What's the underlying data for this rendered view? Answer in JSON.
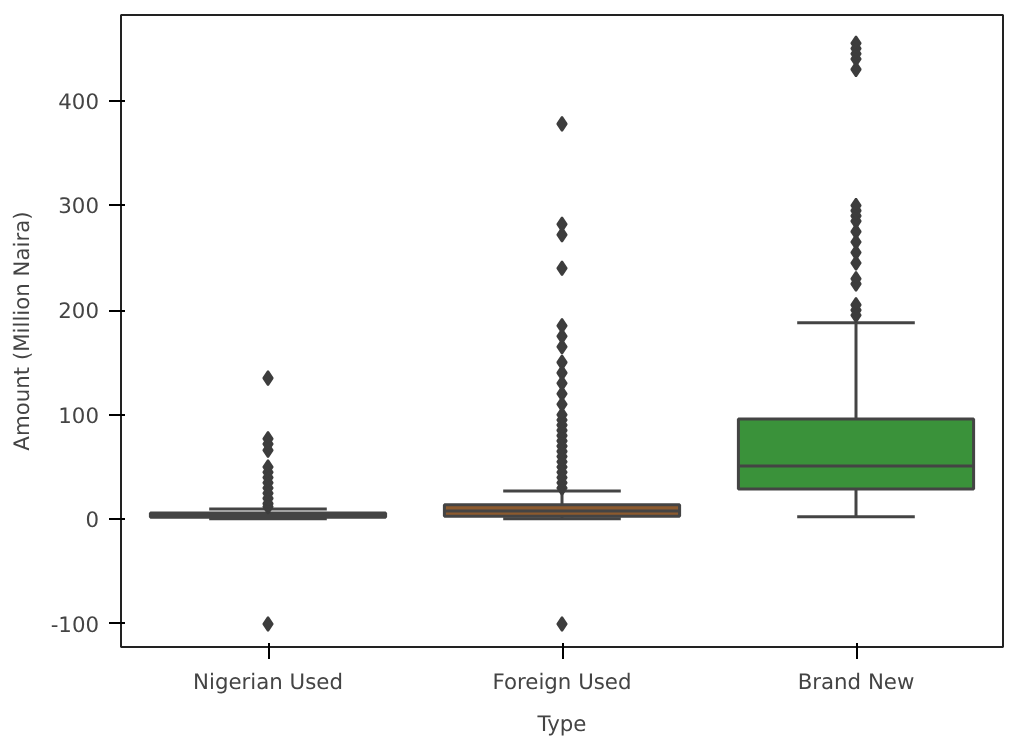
{
  "chart_data": {
    "type": "box",
    "xlabel": "Type",
    "ylabel": "Amount (Million Naira)",
    "categories": [
      "Nigerian Used",
      "Foreign Used",
      "Brand New"
    ],
    "colors": [
      "#3274a1",
      "#8c5a2e",
      "#3a923a"
    ],
    "boxes": [
      {
        "low": 0.5,
        "q1": 2,
        "median": 4,
        "q3": 6,
        "high": 10,
        "outliers": [
          -100,
          12,
          15,
          20,
          25,
          30,
          35,
          40,
          45,
          50,
          66,
          72,
          77,
          135
        ]
      },
      {
        "low": 0.5,
        "q1": 3,
        "median": 8,
        "q3": 14,
        "high": 27,
        "outliers": [
          -100,
          30,
          35,
          40,
          45,
          50,
          55,
          60,
          65,
          70,
          75,
          80,
          85,
          90,
          95,
          100,
          110,
          120,
          130,
          140,
          150,
          165,
          175,
          185,
          240,
          272,
          282,
          378
        ]
      },
      {
        "low": 2.5,
        "q1": 29,
        "median": 51,
        "q3": 96,
        "high": 188,
        "outliers": [
          195,
          200,
          205,
          225,
          230,
          245,
          255,
          265,
          275,
          285,
          290,
          295,
          300,
          430,
          440,
          445,
          450,
          455
        ]
      }
    ],
    "ylim": [
      -122,
      482
    ],
    "yticks": [
      -100,
      0,
      100,
      200,
      300,
      400
    ],
    "grid": false,
    "marker": "diamond"
  }
}
